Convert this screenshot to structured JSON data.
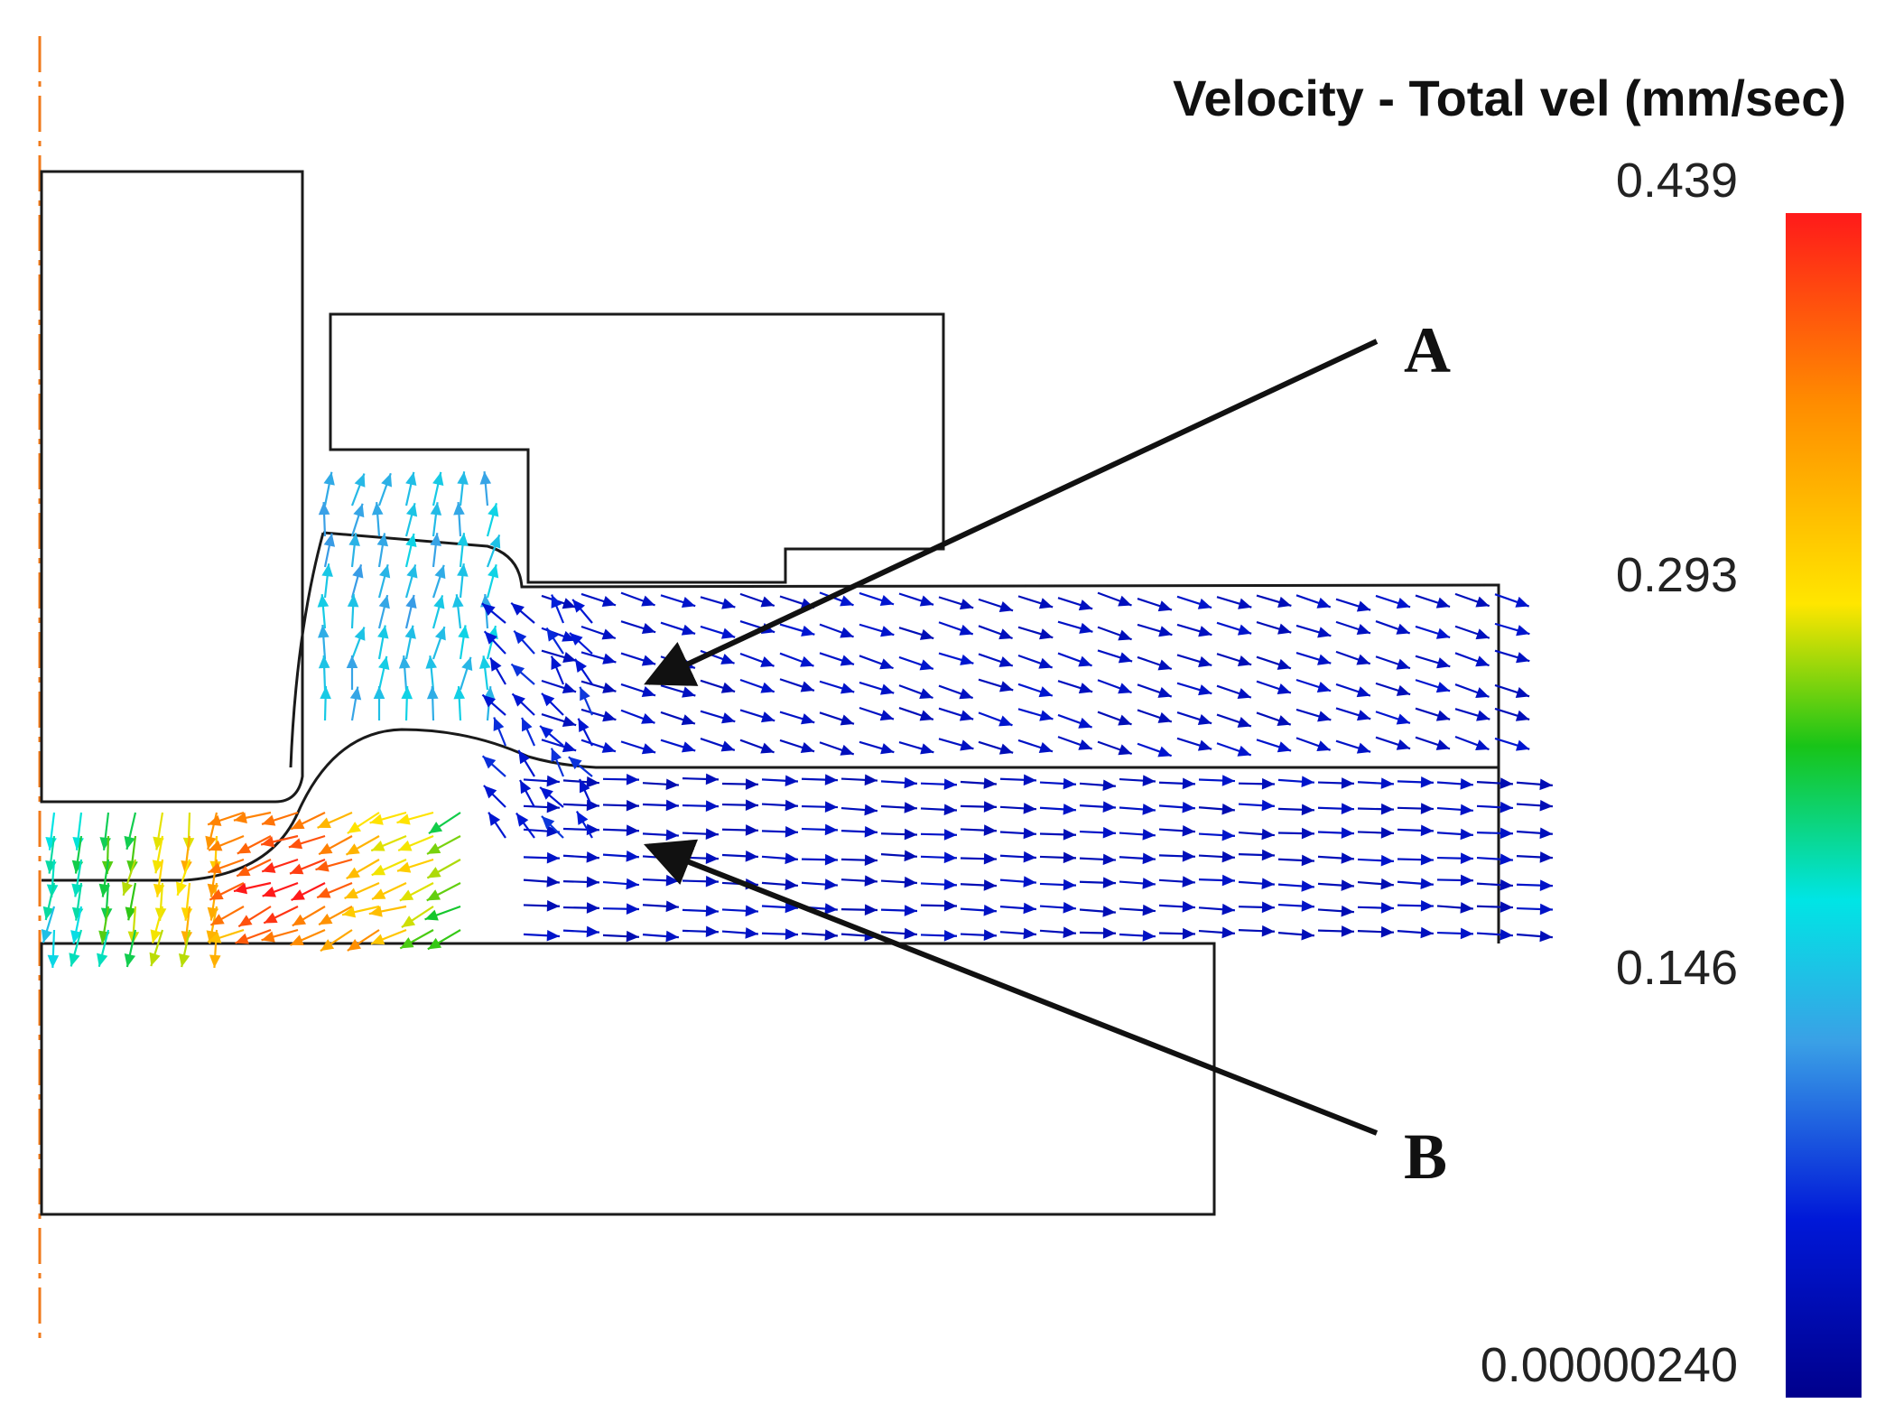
{
  "legend": {
    "title": "Velocity - Total vel (mm/sec)",
    "max_label": "0.439",
    "tick_2": "0.293",
    "tick_1": "0.146",
    "min_label": "0.00000240",
    "max_value": 0.439,
    "min_value": 2.4e-06,
    "colormap": [
      "#ff1a1a",
      "#ff8c00",
      "#ffe600",
      "#18c418",
      "#00e5e5",
      "#3aa0e6",
      "#0018d8",
      "#00008c"
    ]
  },
  "callouts": {
    "a": "A",
    "b": "B"
  },
  "colors": {
    "outline": "#1a1a1a",
    "axis": "#f07a1a",
    "arrow_slow": "#1a1ab8"
  }
}
